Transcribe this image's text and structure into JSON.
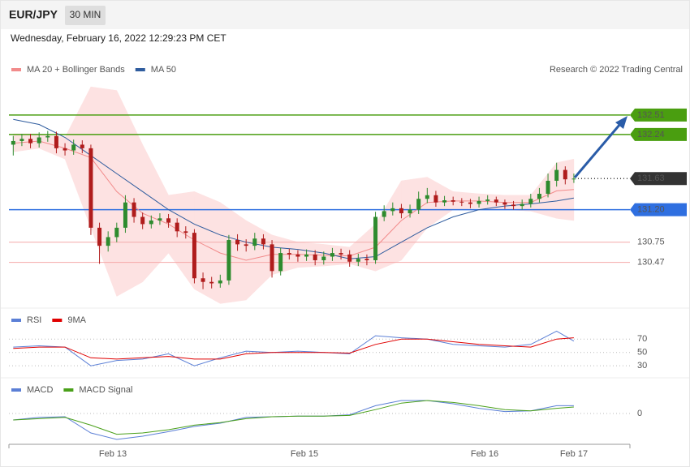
{
  "header": {
    "symbol": "EUR/JPY",
    "timeframe": "30 MIN",
    "timestamp": "Wednesday, February 16, 2022 12:29:23 PM CET"
  },
  "chart_data": [
    {
      "type": "candlestick",
      "credit": "Research © 2022 Trading Central",
      "up_color": "#2e8b2e",
      "down_color": "#b01c1c",
      "xlim": [
        -0.5,
        71.5
      ],
      "ylim": [
        129.86,
        132.98
      ],
      "open": [
        132.1,
        132.15,
        132.18,
        132.12,
        132.2,
        132.22,
        132.05,
        132.02,
        132.1,
        132.05,
        130.95,
        130.7,
        130.82,
        130.95,
        131.3,
        131.1,
        131.0,
        131.05,
        131.08,
        131.02,
        130.9,
        130.88,
        130.25,
        130.2,
        130.18,
        130.22,
        130.78,
        130.72,
        130.7,
        130.8,
        130.72,
        130.35,
        130.6,
        130.58,
        130.55,
        130.58,
        130.5,
        130.55,
        130.6,
        130.58,
        130.48,
        130.52,
        130.5,
        131.1,
        131.18,
        131.22,
        131.15,
        131.2,
        131.35,
        131.4,
        131.3,
        131.33,
        131.31,
        131.3,
        131.28,
        131.32,
        131.34,
        131.3,
        131.27,
        131.25,
        131.28,
        131.35,
        131.42,
        131.6,
        131.75,
        131.62
      ],
      "high": [
        132.22,
        132.25,
        132.25,
        132.27,
        132.29,
        132.28,
        132.12,
        132.17,
        132.16,
        132.1,
        131.02,
        130.9,
        131.02,
        131.4,
        131.36,
        131.16,
        131.12,
        131.15,
        131.14,
        131.08,
        130.97,
        130.93,
        130.33,
        130.27,
        130.3,
        130.85,
        130.86,
        130.79,
        130.88,
        130.86,
        130.78,
        130.67,
        130.66,
        130.64,
        130.65,
        130.64,
        130.62,
        130.67,
        130.66,
        130.64,
        130.59,
        130.58,
        131.17,
        131.26,
        131.3,
        131.28,
        131.27,
        131.45,
        131.5,
        131.46,
        131.39,
        131.38,
        131.36,
        131.35,
        131.38,
        131.4,
        131.38,
        131.34,
        131.32,
        131.34,
        131.42,
        131.5,
        131.7,
        131.85,
        131.8,
        131.7
      ],
      "low": [
        131.95,
        132.08,
        132.05,
        132.06,
        132.14,
        131.98,
        131.95,
        131.96,
        131.98,
        130.85,
        130.45,
        130.62,
        130.75,
        130.88,
        131.02,
        130.93,
        130.94,
        130.99,
        130.95,
        130.82,
        130.8,
        130.18,
        130.1,
        130.11,
        130.12,
        130.16,
        130.63,
        130.62,
        130.64,
        130.65,
        130.26,
        130.29,
        130.51,
        130.48,
        130.49,
        130.43,
        130.44,
        130.49,
        130.51,
        130.41,
        130.42,
        130.43,
        130.45,
        131.04,
        131.12,
        131.08,
        131.09,
        131.14,
        131.29,
        131.24,
        131.25,
        131.26,
        131.25,
        131.22,
        131.23,
        131.27,
        131.25,
        131.21,
        131.2,
        131.2,
        131.23,
        131.3,
        131.37,
        131.52,
        131.55,
        131.57
      ],
      "close": [
        132.15,
        132.18,
        132.12,
        132.2,
        132.22,
        132.05,
        132.02,
        132.1,
        132.05,
        130.95,
        130.7,
        130.82,
        130.95,
        131.3,
        131.1,
        131.0,
        131.05,
        131.08,
        131.02,
        130.9,
        130.88,
        130.25,
        130.2,
        130.18,
        130.22,
        130.78,
        130.72,
        130.7,
        130.8,
        130.72,
        130.35,
        130.6,
        130.58,
        130.55,
        130.58,
        130.5,
        130.55,
        130.6,
        130.58,
        130.48,
        130.52,
        130.5,
        131.1,
        131.18,
        131.22,
        131.15,
        131.2,
        131.35,
        131.4,
        131.3,
        131.33,
        131.31,
        131.3,
        131.28,
        131.32,
        131.34,
        131.3,
        131.27,
        131.25,
        131.28,
        131.35,
        131.42,
        131.6,
        131.75,
        131.62,
        131.63
      ],
      "series": [
        {
          "name": "MA 20 + Bollinger Bands",
          "color": "#f28b8b",
          "band_color": "#fde2e2",
          "x": [
            0,
            3,
            6,
            9,
            12,
            15,
            18,
            21,
            24,
            27,
            30,
            33,
            36,
            39,
            42,
            45,
            48,
            51,
            54,
            57,
            60,
            63,
            65
          ],
          "values": [
            132.12,
            132.15,
            132.05,
            131.92,
            131.45,
            131.15,
            131.0,
            130.78,
            130.6,
            130.5,
            130.58,
            130.58,
            130.57,
            130.56,
            130.68,
            131.05,
            131.3,
            131.32,
            131.32,
            131.3,
            131.3,
            131.46,
            131.48
          ],
          "upper": [
            132.25,
            132.25,
            132.2,
            132.9,
            132.85,
            132.1,
            131.4,
            131.45,
            131.3,
            131.05,
            130.85,
            130.75,
            130.72,
            130.68,
            131.0,
            131.6,
            131.65,
            131.45,
            131.42,
            131.4,
            131.4,
            131.85,
            131.9
          ],
          "lower": [
            132.0,
            132.05,
            131.9,
            130.95,
            130.0,
            130.2,
            130.6,
            130.1,
            129.9,
            129.95,
            130.3,
            130.4,
            130.42,
            130.45,
            130.35,
            130.5,
            130.95,
            131.2,
            131.22,
            131.2,
            131.18,
            131.08,
            131.05
          ]
        },
        {
          "name": "MA 50",
          "color": "#2f5c9e",
          "x": [
            0,
            3,
            6,
            9,
            12,
            15,
            18,
            21,
            24,
            27,
            30,
            33,
            36,
            39,
            42,
            45,
            48,
            51,
            54,
            57,
            60,
            63,
            65
          ],
          "values": [
            132.45,
            132.38,
            132.2,
            131.95,
            131.7,
            131.45,
            131.2,
            131.0,
            130.85,
            130.75,
            130.68,
            130.65,
            130.6,
            130.52,
            130.55,
            130.75,
            130.95,
            131.1,
            131.2,
            131.25,
            131.28,
            131.32,
            131.36
          ]
        }
      ],
      "levels": [
        {
          "value": 132.51,
          "color": "#4a9e10",
          "line": "solid",
          "box": true
        },
        {
          "value": 132.24,
          "color": "#4a9e10",
          "line": "solid",
          "box": true
        },
        {
          "value": 131.63,
          "color": "#333333",
          "line": "dotted",
          "box": true
        },
        {
          "value": 131.2,
          "label": "131.20",
          "color": "#2f6fe0",
          "line": "solid",
          "box": true
        },
        {
          "value": 130.75,
          "color": "#e02020",
          "line": "solid",
          "box": false
        },
        {
          "value": 130.47,
          "color": "#e02020",
          "line": "solid",
          "box": false
        }
      ]
    },
    {
      "type": "line",
      "xlim": [
        -0.5,
        71.5
      ],
      "ylim": [
        12,
        114
      ],
      "yticks": [
        30,
        50,
        70
      ],
      "series": [
        {
          "name": "RSI",
          "color": "#5b7fd6",
          "x": [
            0,
            3,
            6,
            9,
            12,
            15,
            18,
            21,
            24,
            27,
            30,
            33,
            36,
            39,
            42,
            45,
            48,
            51,
            54,
            57,
            60,
            63,
            65
          ],
          "values": [
            58,
            60,
            58,
            30,
            38,
            40,
            48,
            30,
            42,
            52,
            50,
            52,
            50,
            48,
            75,
            72,
            70,
            62,
            60,
            58,
            62,
            82,
            67
          ]
        },
        {
          "name": "9MA",
          "color": "#e00000",
          "x": [
            0,
            3,
            6,
            9,
            12,
            15,
            18,
            21,
            24,
            27,
            30,
            33,
            36,
            39,
            42,
            45,
            48,
            51,
            54,
            57,
            60,
            63,
            65
          ],
          "values": [
            56,
            58,
            58,
            42,
            40,
            42,
            44,
            40,
            40,
            48,
            50,
            50,
            50,
            49,
            62,
            70,
            70,
            66,
            62,
            60,
            58,
            70,
            72
          ]
        }
      ]
    },
    {
      "type": "line",
      "xlim": [
        -0.5,
        71.5
      ],
      "ylim": [
        -0.5,
        0.5
      ],
      "yticks": [
        0
      ],
      "xticks": [
        {
          "value": 11.55,
          "label": "Feb 13"
        },
        {
          "value": 33.76,
          "label": "Feb 15"
        },
        {
          "value": 54.65,
          "label": "Feb 16"
        },
        {
          "value": 65,
          "label": "Feb 17"
        }
      ],
      "series": [
        {
          "name": "MACD",
          "color": "#5b7fd6",
          "x": [
            0,
            3,
            6,
            9,
            12,
            15,
            18,
            21,
            24,
            27,
            30,
            33,
            36,
            39,
            42,
            45,
            48,
            51,
            54,
            57,
            60,
            63,
            65
          ],
          "values": [
            -0.1,
            -0.06,
            -0.05,
            -0.3,
            -0.4,
            -0.35,
            -0.28,
            -0.2,
            -0.15,
            -0.06,
            -0.05,
            -0.04,
            -0.04,
            -0.02,
            0.12,
            0.2,
            0.2,
            0.15,
            0.08,
            0.03,
            0.04,
            0.12,
            0.12
          ]
        },
        {
          "name": "MACD Signal",
          "color": "#4aa01a",
          "x": [
            0,
            3,
            6,
            9,
            12,
            15,
            18,
            21,
            24,
            27,
            30,
            33,
            36,
            39,
            42,
            45,
            48,
            51,
            54,
            57,
            60,
            63,
            65
          ],
          "values": [
            -0.1,
            -0.08,
            -0.06,
            -0.18,
            -0.32,
            -0.3,
            -0.25,
            -0.18,
            -0.14,
            -0.08,
            -0.05,
            -0.04,
            -0.04,
            -0.03,
            0.06,
            0.16,
            0.2,
            0.17,
            0.12,
            0.06,
            0.04,
            0.08,
            0.1
          ]
        }
      ]
    }
  ]
}
